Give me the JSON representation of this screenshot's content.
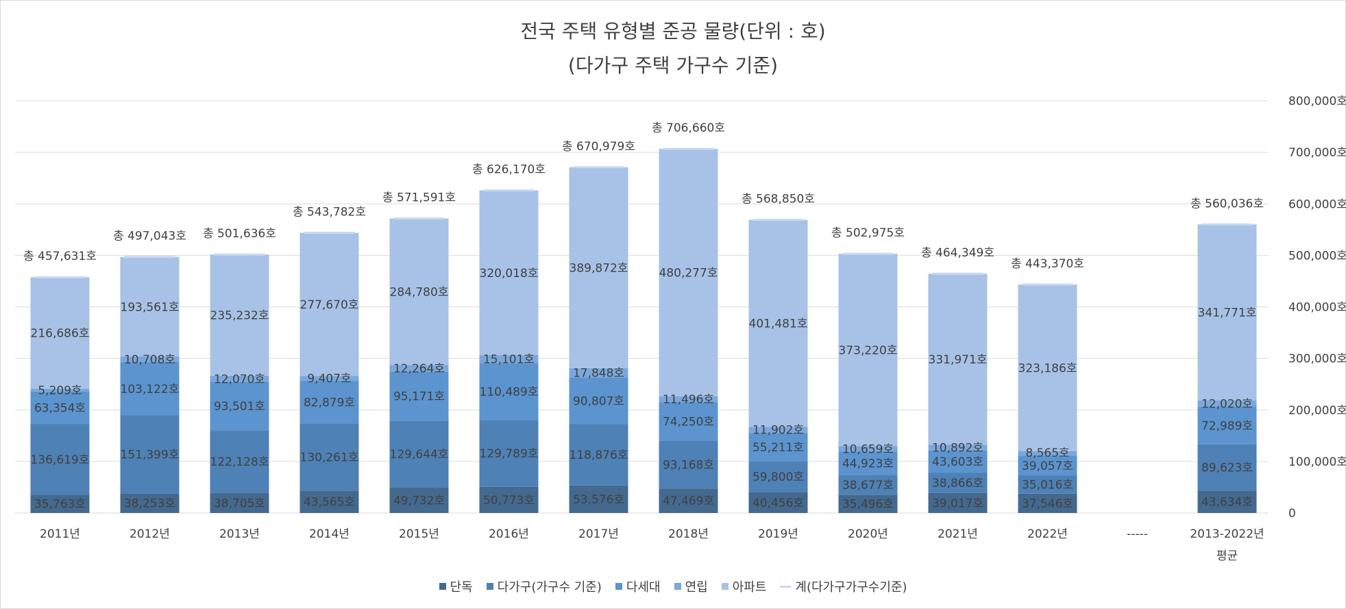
{
  "chart_data": {
    "type": "bar",
    "stacked": true,
    "title": "전국 주택 유형별 준공 물량(단위 : 호)",
    "subtitle": "(다가구 주택 가구수 기준)",
    "categories": [
      "2011년",
      "2012년",
      "2013년",
      "2014년",
      "2015년",
      "2016년",
      "2017년",
      "2018년",
      "2019년",
      "2020년",
      "2021년",
      "2022년",
      "-----",
      "2013-2022년 평균"
    ],
    "series": [
      {
        "name": "단독",
        "color": "#44698f",
        "values": [
          35763,
          38253,
          38705,
          43565,
          49732,
          50773,
          53576,
          47469,
          40456,
          35496,
          39017,
          37546,
          null,
          43634
        ],
        "labels": [
          "35,763호",
          "38,253호",
          "38,705호",
          "43,565호",
          "49,732호",
          "50,773호",
          "53,576호",
          "47,469호",
          "40,456호",
          "35,496호",
          "39,017호",
          "37,546호",
          "",
          "43,634호"
        ]
      },
      {
        "name": "다가구(가구수 기준)",
        "color": "#4e81b5",
        "values": [
          136619,
          151399,
          122128,
          130261,
          129644,
          129789,
          118876,
          93168,
          59800,
          38677,
          38866,
          35016,
          null,
          89623
        ],
        "labels": [
          "136,619호",
          "151,399호",
          "122,128호",
          "130,261호",
          "129,644호",
          "129,789호",
          "118,876호",
          "93,168호",
          "59,800호",
          "38,677호",
          "38,866호",
          "35,016호",
          "",
          "89,623호"
        ]
      },
      {
        "name": "다세대",
        "color": "#5b94cf",
        "values": [
          63354,
          103122,
          93501,
          82879,
          95171,
          110489,
          90807,
          74250,
          55211,
          44923,
          43603,
          39057,
          null,
          72989
        ],
        "labels": [
          "63,354호",
          "103,122호",
          "93,501호",
          "82,879호",
          "95,171호",
          "110,489호",
          "90,807호",
          "74,250호",
          "55,211호",
          "44,923호",
          "43,603호",
          "39,057호",
          "",
          "72,989호"
        ]
      },
      {
        "name": "연립",
        "color": "#7aa8dc",
        "values": [
          5209,
          10708,
          12070,
          9407,
          12264,
          15101,
          17848,
          11496,
          11902,
          10659,
          10892,
          8565,
          null,
          12020
        ],
        "labels": [
          "5,209호",
          "10,708호",
          "12,070호",
          "9,407호",
          "12,264호",
          "15,101호",
          "17,848호",
          "11,496호",
          "11,902호",
          "10,659호",
          "10,892호",
          "8,565호",
          "",
          "12,020호"
        ]
      },
      {
        "name": "아파트",
        "color": "#a7c2e6",
        "values": [
          216686,
          193561,
          235232,
          277670,
          284780,
          320018,
          389872,
          480277,
          401481,
          373220,
          331971,
          323186,
          null,
          341771
        ],
        "labels": [
          "216,686호",
          "193,561호",
          "235,232호",
          "277,670호",
          "284,780호",
          "320,018호",
          "389,872호",
          "480,277호",
          "401,481호",
          "373,220호",
          "331,971호",
          "323,186호",
          "",
          "341,771호"
        ]
      }
    ],
    "total": {
      "name": "계(다가구가구수기준)",
      "color": "#c7d9f1",
      "values": [
        457631,
        497043,
        501636,
        543782,
        571591,
        626170,
        670979,
        706660,
        568850,
        502975,
        464349,
        443370,
        null,
        560036
      ],
      "labels": [
        "총 457,631호",
        "총 497,043호",
        "총 501,636호",
        "총 543,782호",
        "총 571,591호",
        "총 626,170호",
        "총 670,979호",
        "총 706,660호",
        "총 568,850호",
        "총 502,975호",
        "총 464,349호",
        "총 443,370호",
        "",
        "총 560,036호"
      ]
    },
    "y_axis": {
      "position": "right",
      "ylim": [
        0,
        800000
      ],
      "ticks": [
        0,
        100000,
        200000,
        300000,
        400000,
        500000,
        600000,
        700000,
        800000
      ],
      "tick_labels": [
        "0",
        "100,000호",
        "200,000호",
        "300,000호",
        "400,000호",
        "500,000호",
        "600,000호",
        "700,000호",
        "800,000호"
      ]
    },
    "grid": true,
    "legend_position": "bottom"
  }
}
